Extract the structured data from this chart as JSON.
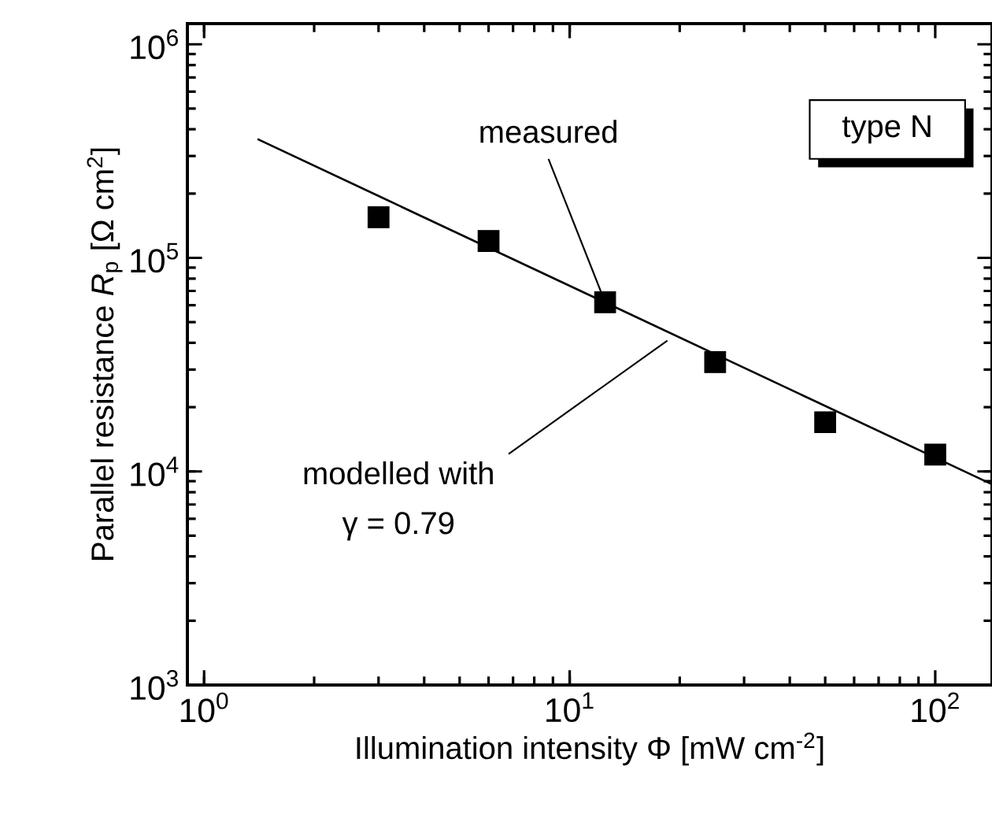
{
  "chart_data": {
    "type": "scatter",
    "xlabel": "Illumination intensity Φ  [mW cm$^{-2}$]",
    "ylabel": "Parallel resistance  *R*$_{p}$  [Ω cm$^{2}$]",
    "log": "xy",
    "xlim": [
      0.9,
      143
    ],
    "ylim": [
      1000,
      1250000
    ],
    "xticks": [
      {
        "value": 1,
        "label": "10$^{0}$"
      },
      {
        "value": 10,
        "label": "10$^{1}$"
      },
      {
        "value": 100,
        "label": "10$^{2}$"
      }
    ],
    "yticks": [
      {
        "value": 1000,
        "label": "10$^{3}$"
      },
      {
        "value": 10000,
        "label": "10$^{4}$"
      },
      {
        "value": 100000,
        "label": "10$^{5}$"
      },
      {
        "value": 1000000,
        "label": "10$^{6}$"
      }
    ],
    "series": [
      {
        "marker": "square",
        "color": "#000000",
        "x": [
          3,
          6,
          12.5,
          25,
          50,
          100
        ],
        "values": [
          155000,
          120000,
          62000,
          32500,
          17000,
          12000
        ]
      },
      {
        "type": "line",
        "marker": "none",
        "line_style": "solid",
        "color": "#000000",
        "x": [
          1.4,
          143
        ],
        "values": [
          360000,
          8700
        ]
      }
    ],
    "annotations": [
      {
        "text": "measured",
        "x": 12.5,
        "y": 62000
      },
      {
        "text": "modelled with",
        "x": 18.5,
        "y": 41000
      },
      "γ = 0.79",
      "type N"
    ]
  }
}
